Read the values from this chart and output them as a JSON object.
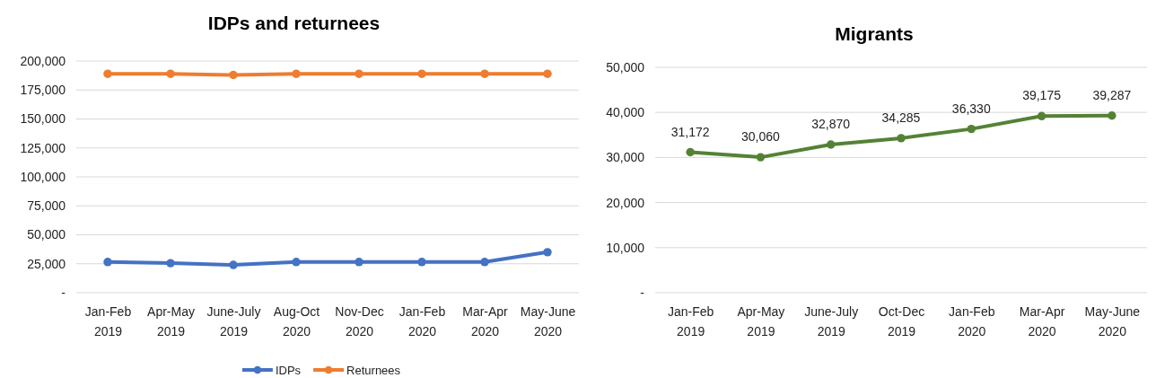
{
  "chart_data": [
    {
      "type": "line",
      "title": "IDPs and returnees",
      "categories": [
        "Jan-Feb\n2019",
        "Apr-May\n2019",
        "June-July\n2019",
        "Aug-Oct\n2020",
        "Nov-Dec\n2020",
        "Jan-Feb\n2020",
        "Mar-Apr\n2020",
        "May-June\n2020"
      ],
      "series": [
        {
          "name": "IDPs",
          "color": "#4472c4",
          "values": [
            26500,
            25500,
            24000,
            26500,
            26500,
            26500,
            26500,
            35000
          ]
        },
        {
          "name": "Returnees",
          "color": "#ed7d31",
          "values": [
            189000,
            189000,
            188000,
            189000,
            189000,
            189000,
            189000,
            189000
          ]
        }
      ],
      "ylim": [
        0,
        200000
      ],
      "yticks": [
        {
          "value": 0,
          "label": "-"
        },
        {
          "value": 25000,
          "label": "25,000"
        },
        {
          "value": 50000,
          "label": "50,000"
        },
        {
          "value": 75000,
          "label": "75,000"
        },
        {
          "value": 100000,
          "label": "100,000"
        },
        {
          "value": 125000,
          "label": "125,000"
        },
        {
          "value": 150000,
          "label": "150,000"
        },
        {
          "value": 175000,
          "label": "175,000"
        },
        {
          "value": 200000,
          "label": "200,000"
        }
      ],
      "grid": "y",
      "legend": "bottom",
      "marker": "circle"
    },
    {
      "type": "line",
      "title": "Migrants",
      "categories": [
        "Jan-Feb\n2019",
        "Apr-May\n2019",
        "June-July\n2019",
        "Oct-Dec\n2019",
        "Jan-Feb\n2020",
        "Mar-Apr\n2020",
        "May-June\n2020"
      ],
      "series": [
        {
          "color": "#548235",
          "values": [
            31172,
            30060,
            32870,
            34285,
            36330,
            39175,
            39287
          ],
          "value_labels": [
            "31,172",
            "30,060",
            "32,870",
            "34,285",
            "36,330",
            "39,175",
            "39,287"
          ]
        }
      ],
      "ylim": [
        0,
        50000
      ],
      "yticks": [
        {
          "value": 0,
          "label": "-"
        },
        {
          "value": 10000,
          "label": "10,000"
        },
        {
          "value": 20000,
          "label": "20,000"
        },
        {
          "value": 30000,
          "label": "30,000"
        },
        {
          "value": 40000,
          "label": "40,000"
        },
        {
          "value": 50000,
          "label": "50,000"
        }
      ],
      "grid": "y",
      "marker": "circle"
    }
  ]
}
